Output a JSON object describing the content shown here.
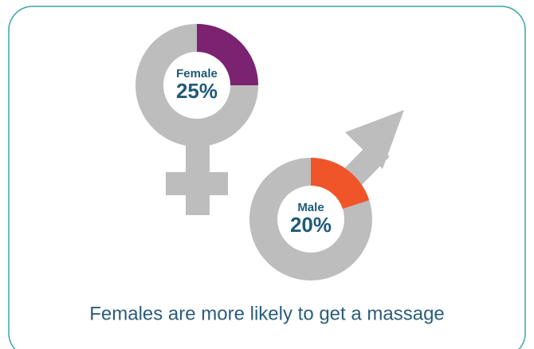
{
  "chart_data": [
    {
      "type": "donut",
      "categories": [
        "Female"
      ],
      "values": [
        25
      ],
      "value_labels": [
        "25%"
      ],
      "color": "#7b2370"
    },
    {
      "type": "donut",
      "categories": [
        "Male"
      ],
      "values": [
        20
      ],
      "value_labels": [
        "20%"
      ],
      "color": "#f0552a"
    }
  ],
  "caption": "Females are more likely to get a massage"
}
